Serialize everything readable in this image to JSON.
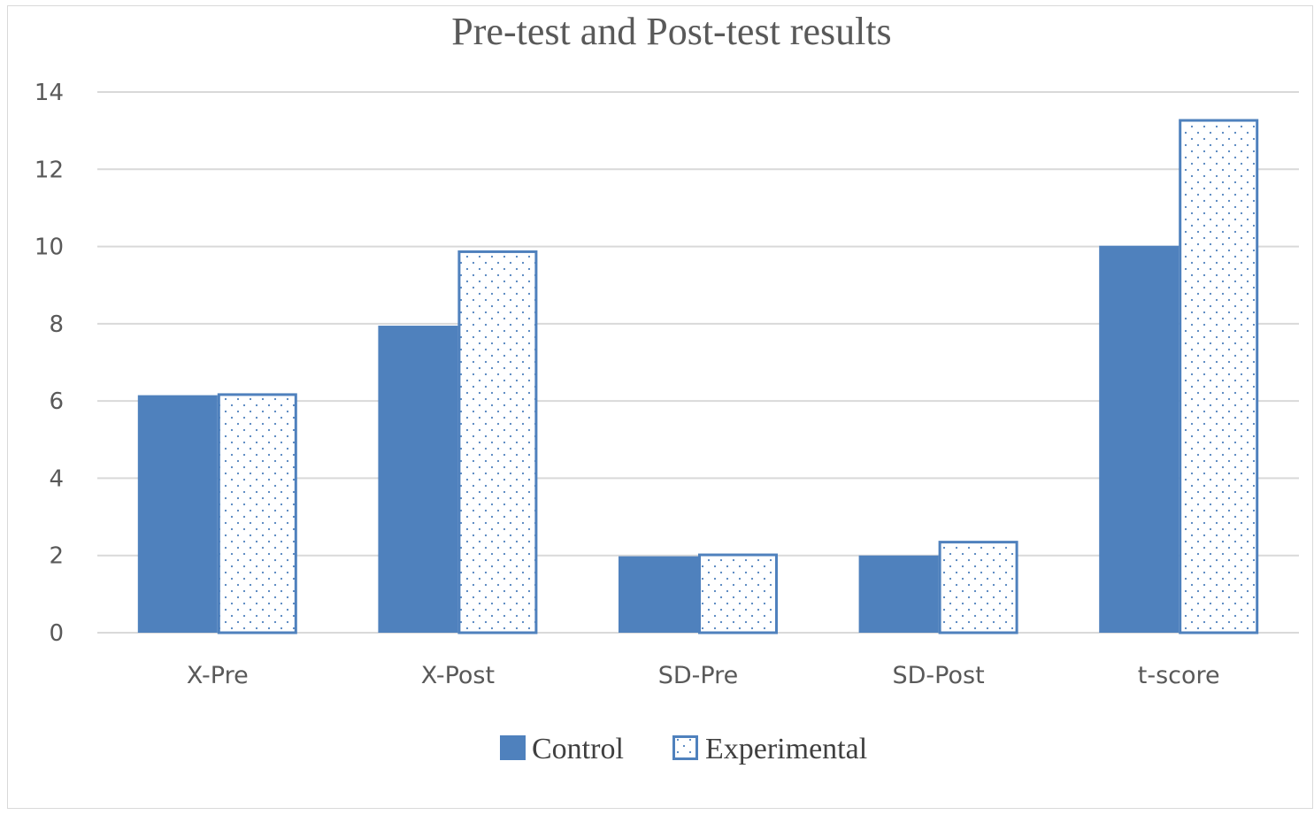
{
  "chart_data": {
    "type": "bar",
    "title": "Pre-test and Post-test results",
    "categories": [
      "X-Pre",
      "X-Post",
      "SD-Pre",
      "SD-Post",
      "t-score"
    ],
    "series": [
      {
        "name": "Control",
        "values": [
          6.15,
          7.95,
          1.98,
          2.0,
          10.02
        ]
      },
      {
        "name": "Experimental",
        "values": [
          6.2,
          9.9,
          2.05,
          2.38,
          13.3
        ]
      }
    ],
    "yticks": [
      "0",
      "2",
      "4",
      "6",
      "8",
      "10",
      "12",
      "14"
    ],
    "ylim": [
      0,
      14
    ],
    "grid": true,
    "legend_position": "bottom",
    "colors": {
      "control": "#4f81bd",
      "experimental_border": "#4f81bd",
      "experimental_fill": "#ffffff",
      "grid": "#d9d9d9"
    }
  }
}
